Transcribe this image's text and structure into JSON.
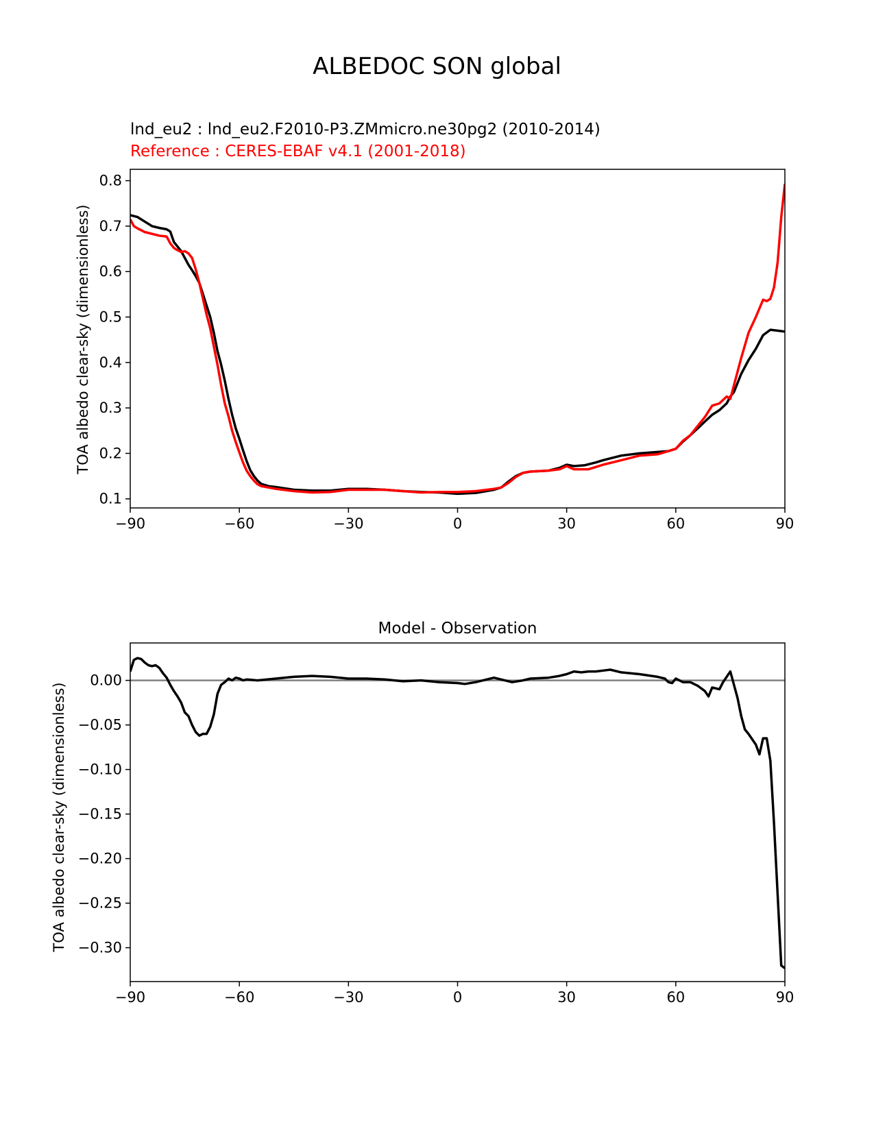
{
  "figure": {
    "title": "ALBEDOC SON global"
  },
  "chart_data": [
    {
      "type": "line",
      "subtitle_test": "lnd_eu2 : lnd_eu2.F2010-P3.ZMmicro.ne30pg2 (2010-2014)",
      "subtitle_ref": "Reference : CERES-EBAF v4.1 (2001-2018)",
      "ylabel": "TOA albedo clear-sky (dimensionless)",
      "xlim": [
        -90,
        90
      ],
      "ylim": [
        0.08,
        0.825
      ],
      "xticks": [
        -90,
        -60,
        -30,
        0,
        30,
        60,
        90
      ],
      "xtick_labels": [
        "−90",
        "−60",
        "−30",
        "0",
        "30",
        "60",
        "90"
      ],
      "yticks": [
        0.1,
        0.2,
        0.3,
        0.4,
        0.5,
        0.6,
        0.7,
        0.8
      ],
      "ytick_labels": [
        "0.1",
        "0.2",
        "0.3",
        "0.4",
        "0.5",
        "0.6",
        "0.7",
        "0.8"
      ],
      "grid": false,
      "series": [
        {
          "role": "test",
          "color": "#000000",
          "x": [
            -90,
            -88,
            -86,
            -84,
            -82,
            -80,
            -79,
            -78,
            -77,
            -76,
            -75,
            -74,
            -73,
            -72,
            -71,
            -70,
            -69,
            -68,
            -67,
            -66,
            -65,
            -64,
            -63,
            -62,
            -61,
            -60,
            -59,
            -58,
            -57,
            -56,
            -55,
            -54,
            -52,
            -50,
            -45,
            -40,
            -35,
            -30,
            -25,
            -20,
            -15,
            -10,
            -5,
            0,
            5,
            10,
            12,
            14,
            16,
            18,
            20,
            25,
            28,
            30,
            32,
            35,
            38,
            40,
            45,
            50,
            55,
            58,
            60,
            62,
            64,
            66,
            68,
            70,
            72,
            74,
            75,
            76,
            78,
            80,
            82,
            84,
            86,
            88,
            90
          ],
          "y": [
            0.724,
            0.72,
            0.71,
            0.7,
            0.696,
            0.693,
            0.688,
            0.665,
            0.655,
            0.645,
            0.63,
            0.615,
            0.603,
            0.59,
            0.575,
            0.55,
            0.525,
            0.5,
            0.465,
            0.425,
            0.395,
            0.36,
            0.32,
            0.285,
            0.255,
            0.232,
            0.207,
            0.183,
            0.163,
            0.15,
            0.14,
            0.133,
            0.128,
            0.126,
            0.12,
            0.118,
            0.118,
            0.122,
            0.122,
            0.12,
            0.117,
            0.115,
            0.114,
            0.111,
            0.113,
            0.12,
            0.125,
            0.138,
            0.15,
            0.157,
            0.16,
            0.162,
            0.168,
            0.175,
            0.172,
            0.174,
            0.18,
            0.185,
            0.195,
            0.2,
            0.203,
            0.205,
            0.21,
            0.226,
            0.24,
            0.255,
            0.27,
            0.285,
            0.295,
            0.31,
            0.325,
            0.335,
            0.375,
            0.405,
            0.43,
            0.46,
            0.472,
            0.47,
            0.468
          ]
        },
        {
          "role": "reference",
          "color": "#ff0000",
          "x": [
            -90,
            -89,
            -88,
            -86,
            -84,
            -82,
            -80,
            -79,
            -78,
            -77,
            -76,
            -75,
            -74,
            -73,
            -72,
            -71,
            -70,
            -69,
            -68,
            -67,
            -66,
            -65,
            -64,
            -63,
            -62,
            -61,
            -60,
            -59,
            -58,
            -57,
            -56,
            -55,
            -54,
            -52,
            -50,
            -45,
            -40,
            -35,
            -30,
            -25,
            -20,
            -15,
            -10,
            -5,
            0,
            5,
            10,
            12,
            14,
            16,
            18,
            20,
            25,
            28,
            30,
            32,
            34,
            36,
            38,
            40,
            45,
            50,
            55,
            58,
            60,
            62,
            64,
            66,
            68,
            70,
            72,
            74,
            75,
            76,
            78,
            80,
            82,
            84,
            85,
            86,
            87,
            88,
            89,
            90
          ],
          "y": [
            0.715,
            0.7,
            0.695,
            0.687,
            0.683,
            0.679,
            0.677,
            0.662,
            0.652,
            0.647,
            0.643,
            0.645,
            0.64,
            0.63,
            0.605,
            0.575,
            0.54,
            0.505,
            0.475,
            0.435,
            0.395,
            0.35,
            0.31,
            0.282,
            0.25,
            0.225,
            0.202,
            0.18,
            0.162,
            0.15,
            0.14,
            0.132,
            0.128,
            0.125,
            0.122,
            0.117,
            0.114,
            0.115,
            0.12,
            0.12,
            0.12,
            0.117,
            0.114,
            0.115,
            0.115,
            0.117,
            0.122,
            0.125,
            0.135,
            0.148,
            0.157,
            0.16,
            0.162,
            0.165,
            0.172,
            0.165,
            0.165,
            0.165,
            0.17,
            0.175,
            0.185,
            0.195,
            0.198,
            0.205,
            0.21,
            0.228,
            0.24,
            0.26,
            0.28,
            0.305,
            0.31,
            0.325,
            0.32,
            0.35,
            0.41,
            0.465,
            0.5,
            0.538,
            0.535,
            0.54,
            0.565,
            0.62,
            0.72,
            0.793
          ]
        }
      ]
    },
    {
      "type": "line",
      "title": "Model - Observation",
      "ylabel": "TOA albedo clear-sky (dimensionless)",
      "xlim": [
        -90,
        90
      ],
      "ylim": [
        -0.338,
        0.042
      ],
      "xticks": [
        -90,
        -60,
        -30,
        0,
        30,
        60,
        90
      ],
      "xtick_labels": [
        "−90",
        "−60",
        "−30",
        "0",
        "30",
        "60",
        "90"
      ],
      "yticks": [
        0.0,
        -0.05,
        -0.1,
        -0.15,
        -0.2,
        -0.25,
        -0.3
      ],
      "ytick_labels": [
        "0.00",
        "−0.05",
        "−0.10",
        "−0.15",
        "−0.20",
        "−0.25",
        "−0.30"
      ],
      "zero_line_color": "#808080",
      "grid": false,
      "series": [
        {
          "role": "difference",
          "color": "#000000",
          "x": [
            -90,
            -89,
            -88,
            -87,
            -86,
            -85,
            -84,
            -83,
            -82,
            -81,
            -80,
            -79,
            -78,
            -77,
            -76,
            -75,
            -74,
            -73,
            -72,
            -71,
            -70,
            -69,
            -68,
            -67,
            -66,
            -65,
            -64,
            -63,
            -62,
            -61,
            -60,
            -59,
            -58,
            -55,
            -50,
            -45,
            -40,
            -35,
            -30,
            -25,
            -20,
            -15,
            -10,
            -5,
            0,
            2,
            5,
            10,
            12,
            15,
            18,
            20,
            25,
            28,
            30,
            32,
            34,
            36,
            38,
            40,
            42,
            45,
            50,
            55,
            57,
            58,
            59,
            60,
            62,
            64,
            66,
            68,
            69,
            70,
            72,
            73,
            75,
            76,
            77,
            78,
            79,
            80,
            82,
            83,
            84,
            85,
            86,
            87,
            88,
            89,
            90
          ],
          "y": [
            0.01,
            0.023,
            0.025,
            0.024,
            0.02,
            0.017,
            0.016,
            0.017,
            0.014,
            0.008,
            0.003,
            -0.005,
            -0.012,
            -0.018,
            -0.025,
            -0.036,
            -0.04,
            -0.05,
            -0.058,
            -0.062,
            -0.06,
            -0.06,
            -0.052,
            -0.038,
            -0.015,
            -0.005,
            -0.002,
            0.002,
            0.0,
            0.003,
            0.002,
            0.0,
            0.001,
            0.0,
            0.002,
            0.004,
            0.005,
            0.004,
            0.002,
            0.002,
            0.001,
            -0.001,
            0.0,
            -0.002,
            -0.003,
            -0.004,
            -0.002,
            0.003,
            0.001,
            -0.002,
            0.0,
            0.002,
            0.003,
            0.005,
            0.007,
            0.01,
            0.009,
            0.01,
            0.01,
            0.011,
            0.012,
            0.009,
            0.007,
            0.004,
            0.002,
            -0.002,
            -0.003,
            0.002,
            -0.002,
            -0.002,
            -0.006,
            -0.012,
            -0.018,
            -0.008,
            -0.01,
            -0.002,
            0.01,
            -0.005,
            -0.02,
            -0.04,
            -0.055,
            -0.06,
            -0.072,
            -0.083,
            -0.065,
            -0.065,
            -0.09,
            -0.16,
            -0.24,
            -0.32,
            -0.323
          ]
        }
      ]
    }
  ]
}
